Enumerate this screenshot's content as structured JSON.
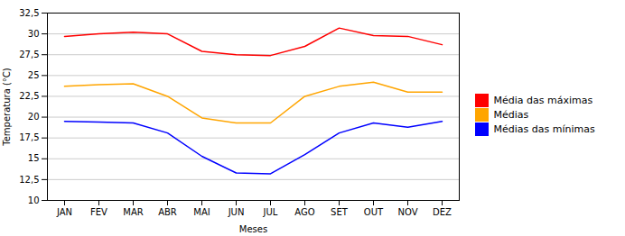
{
  "chart_data": {
    "type": "line",
    "xlabel": "Meses",
    "ylabel": "Temperatura (°C)",
    "categories": [
      "JAN",
      "FEV",
      "MAR",
      "ABR",
      "MAI",
      "JUN",
      "JUL",
      "AGO",
      "SET",
      "OUT",
      "NOV",
      "DEZ"
    ],
    "series": [
      {
        "name": "Média das máximas",
        "color": "#FF0000",
        "values": [
          29.7,
          30.0,
          30.2,
          30.0,
          27.9,
          27.5,
          27.4,
          28.5,
          30.7,
          29.8,
          29.7,
          28.7
        ]
      },
      {
        "name": "Médias",
        "color": "#FFA500",
        "values": [
          23.7,
          23.9,
          24.0,
          22.5,
          19.9,
          19.3,
          19.3,
          22.5,
          23.7,
          24.2,
          23.0,
          23.0
        ]
      },
      {
        "name": "Médias das mínimas",
        "color": "#0000FF",
        "values": [
          19.5,
          19.4,
          19.3,
          18.1,
          15.3,
          13.3,
          13.2,
          15.5,
          18.1,
          19.3,
          18.8,
          19.5
        ]
      }
    ],
    "ylim": [
      10,
      32.5
    ],
    "yticks": [
      10,
      {
        "value": 12.5,
        "label": "12,5"
      },
      15,
      {
        "value": 17.5,
        "label": "17,5"
      },
      20,
      {
        "value": 22.5,
        "label": "22,5"
      },
      25,
      {
        "value": 27.5,
        "label": "27,5"
      },
      30,
      {
        "value": 32.5,
        "label": "32,5"
      }
    ],
    "grid": true,
    "legend": "right"
  }
}
